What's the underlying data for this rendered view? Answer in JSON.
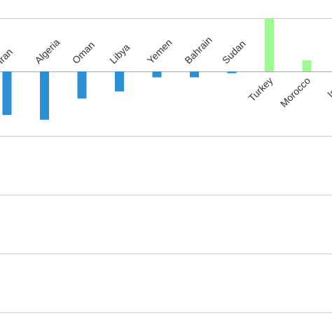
{
  "chart_data": {
    "type": "bar",
    "categories": [
      "Iran",
      "Algeria",
      "Oman",
      "Libya",
      "Yemen",
      "Bahrain",
      "Sudan",
      "Turkey",
      "Morocco",
      "Israel"
    ],
    "values": [
      -7.4,
      -8.2,
      -4.6,
      -3.4,
      -1.0,
      -1.0,
      -0.3,
      9.0,
      1.9,
      0
    ],
    "ylim": [
      -41,
      9
    ],
    "grid": true,
    "title": "",
    "xlabel": "",
    "ylabel": "",
    "colors": {
      "negative": "#2b8fd6",
      "positive": "#9efb94"
    }
  }
}
